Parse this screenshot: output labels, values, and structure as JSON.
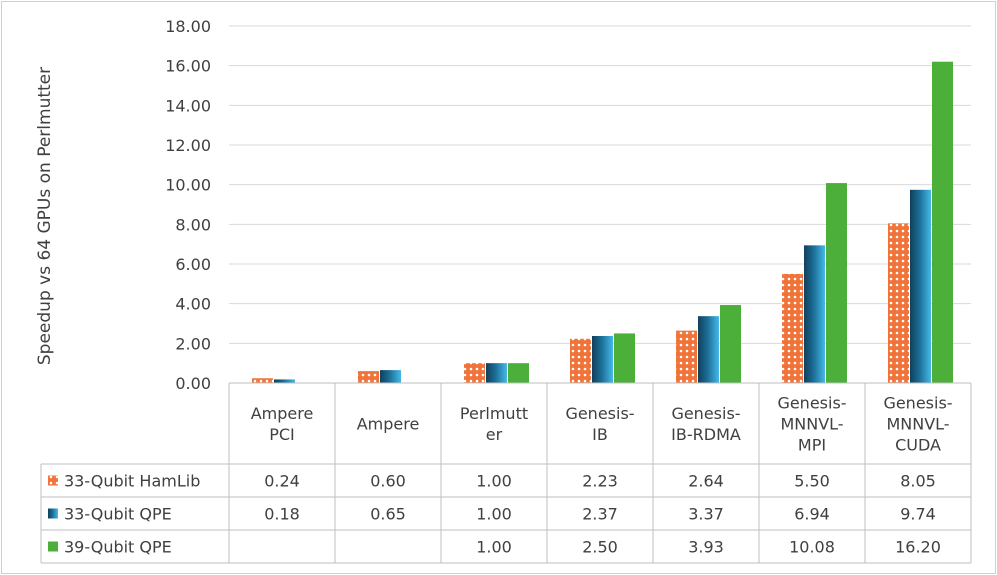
{
  "chart_data": {
    "type": "bar",
    "title": "",
    "xlabel": "",
    "ylabel": "Speedup vs 64 GPUs on Perlmutter",
    "ylim": [
      0,
      18
    ],
    "yticks": [
      "0.00",
      "2.00",
      "4.00",
      "6.00",
      "8.00",
      "10.00",
      "12.00",
      "14.00",
      "16.00",
      "18.00"
    ],
    "grid": true,
    "data_table": true,
    "categories": [
      [
        "Ampere",
        "PCI"
      ],
      [
        "Ampere"
      ],
      [
        "Perlmutt",
        "er"
      ],
      [
        "Genesis-",
        "IB"
      ],
      [
        "Genesis-",
        "IB-RDMA"
      ],
      [
        "Genesis-",
        "MNNVL-",
        "MPI"
      ],
      [
        "Genesis-",
        "MNNVL-",
        "CUDA"
      ]
    ],
    "series": [
      {
        "name": "33-Qubit HamLib",
        "color": "#f0743a",
        "pattern": "dots",
        "values": [
          0.24,
          0.6,
          1.0,
          2.23,
          2.64,
          5.5,
          8.05
        ],
        "labels": [
          "0.24",
          "0.60",
          "1.00",
          "2.23",
          "2.64",
          "5.50",
          "8.05"
        ]
      },
      {
        "name": "33-Qubit QPE",
        "color": "#1b6e96",
        "pattern": "gradient",
        "values": [
          0.18,
          0.65,
          1.0,
          2.37,
          3.37,
          6.94,
          9.74
        ],
        "labels": [
          "0.18",
          "0.65",
          "1.00",
          "2.37",
          "3.37",
          "6.94",
          "9.74"
        ]
      },
      {
        "name": "39-Qubit QPE",
        "color": "#4caf3a",
        "pattern": "solid",
        "values": [
          null,
          null,
          1.0,
          2.5,
          3.93,
          10.08,
          16.2
        ],
        "labels": [
          "",
          "",
          "1.00",
          "2.50",
          "3.93",
          "10.08",
          "16.20"
        ]
      }
    ]
  }
}
